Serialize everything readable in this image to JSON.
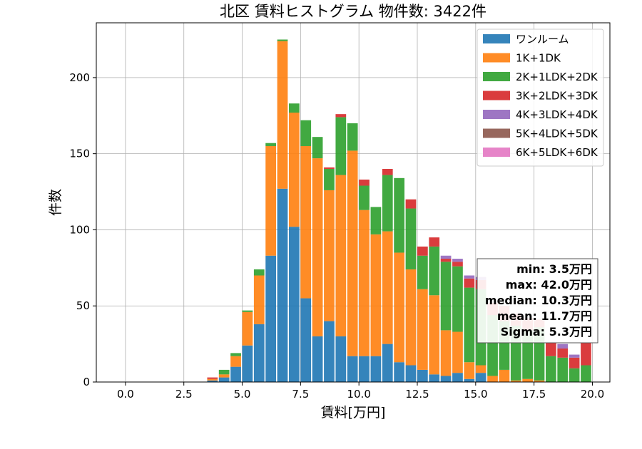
{
  "chart_data": {
    "type": "bar",
    "stacked": true,
    "title": "北区 賃料ヒストグラム  物件数: 3422件",
    "xlabel": "賃料[万円]",
    "ylabel": "件数",
    "xlim": [
      -1.25,
      20.75
    ],
    "ylim": [
      0,
      236
    ],
    "xticks": [
      "0.0",
      "2.5",
      "5.0",
      "7.5",
      "10.0",
      "12.5",
      "15.0",
      "17.5",
      "20.0"
    ],
    "xtick_values": [
      0,
      2.5,
      5,
      7.5,
      10,
      12.5,
      15,
      17.5,
      20
    ],
    "yticks": [
      0,
      50,
      100,
      150,
      200
    ],
    "grid": true,
    "legend_position": "top-right",
    "bin_width": 0.5,
    "x": [
      3.5,
      4.0,
      4.5,
      5.0,
      5.5,
      6.0,
      6.5,
      7.0,
      7.5,
      8.0,
      8.5,
      9.0,
      9.5,
      10.0,
      10.5,
      11.0,
      11.5,
      12.0,
      12.5,
      13.0,
      13.5,
      14.0,
      14.5,
      15.0,
      15.5,
      16.0,
      16.5,
      17.0,
      17.5,
      18.0,
      18.5,
      19.0,
      19.5
    ],
    "series": [
      {
        "name": "ワンルーム",
        "color": "#1f77b4",
        "values": [
          1,
          3,
          10,
          24,
          38,
          83,
          127,
          102,
          55,
          30,
          40,
          30,
          17,
          17,
          17,
          25,
          13,
          11,
          8,
          5,
          4,
          6,
          2,
          6,
          0,
          0,
          0,
          0,
          0,
          0,
          0,
          0,
          0
        ]
      },
      {
        "name": "1K+1DK",
        "color": "#ff7f0e",
        "values": [
          1,
          2,
          7,
          22,
          32,
          72,
          97,
          75,
          100,
          117,
          86,
          106,
          135,
          96,
          80,
          74,
          72,
          63,
          53,
          52,
          30,
          27,
          11,
          5,
          4,
          8,
          1,
          2,
          1,
          0,
          0,
          0,
          0
        ]
      },
      {
        "name": "2K+1LDK+2DK",
        "color": "#2ca02c",
        "values": [
          0,
          3,
          2,
          1,
          4,
          2,
          1,
          6,
          17,
          14,
          14,
          38,
          18,
          16,
          18,
          37,
          49,
          40,
          22,
          32,
          45,
          43,
          49,
          50,
          40,
          32,
          36,
          32,
          35,
          17,
          16,
          9,
          11
        ]
      },
      {
        "name": "3K+2LDK+3DK",
        "color": "#d62728",
        "values": [
          1,
          0,
          0,
          0,
          0,
          0,
          0,
          0,
          0,
          0,
          1,
          2,
          0,
          4,
          0,
          4,
          0,
          6,
          6,
          6,
          2,
          3,
          6,
          6,
          8,
          10,
          8,
          8,
          5,
          9,
          6,
          7,
          15
        ]
      },
      {
        "name": "4K+3LDK+4DK",
        "color": "#9467bd",
        "values": [
          0,
          0,
          0,
          0,
          0,
          0,
          0,
          0,
          0,
          0,
          0,
          0,
          0,
          0,
          0,
          0,
          0,
          0,
          0,
          0,
          2,
          2,
          2,
          2,
          0,
          0,
          0,
          0,
          0,
          0,
          3,
          2,
          0
        ]
      },
      {
        "name": "5K+4LDK+5DK",
        "color": "#8c564b",
        "values": [
          0,
          0,
          0,
          0,
          0,
          0,
          0,
          0,
          0,
          0,
          0,
          0,
          0,
          0,
          0,
          0,
          0,
          0,
          0,
          0,
          0,
          0,
          0,
          0,
          0,
          0,
          0,
          0,
          0,
          0,
          0,
          0,
          0
        ]
      },
      {
        "name": "6K+5LDK+6DK",
        "color": "#e377c2",
        "values": [
          0,
          0,
          0,
          0,
          0,
          0,
          0,
          0,
          0,
          0,
          0,
          0,
          0,
          0,
          0,
          0,
          0,
          0,
          0,
          0,
          0,
          0,
          0,
          0,
          0,
          0,
          0,
          0,
          0,
          0,
          0,
          0,
          0
        ]
      }
    ],
    "stats_lines": [
      "min: 3.5万円",
      "max: 42.0万円",
      "median: 10.3万円",
      "mean: 11.7万円",
      "Sigma: 5.3万円"
    ]
  }
}
